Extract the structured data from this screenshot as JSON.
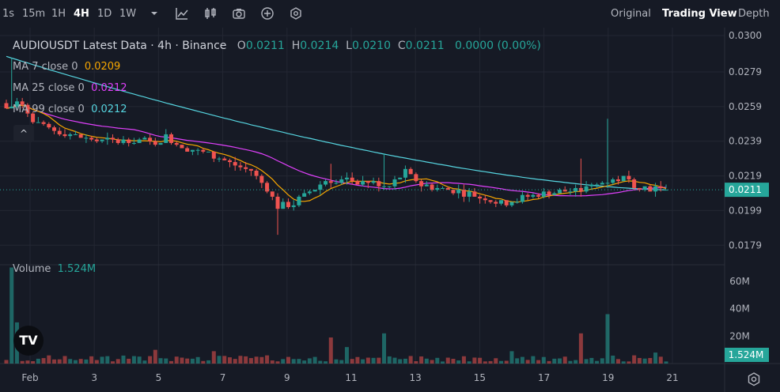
{
  "toolbar": {
    "intervals": [
      "1s",
      "15m",
      "1H",
      "4H",
      "1D",
      "1W"
    ],
    "active_interval": "4H",
    "views": [
      "Original",
      "Trading View",
      "Depth"
    ],
    "active_view": "Trading View",
    "icons": [
      "chevron-down-icon",
      "indicators-icon",
      "candle-type-icon",
      "camera-icon",
      "add-icon",
      "settings-icon"
    ]
  },
  "legend": {
    "title": "AUDIOUSDT Latest Data · 4h · Binance",
    "o_label": "O",
    "o_value": "0.0211",
    "h_label": "H",
    "h_value": "0.0214",
    "l_label": "L",
    "l_value": "0.0210",
    "c_label": "C",
    "c_value": "0.0211",
    "change": "0.0000 (0.00%)",
    "ma7_label": "MA 7 close 0",
    "ma7_value": "0.0209",
    "ma25_label": "MA 25 close 0",
    "ma25_value": "0.0212",
    "ma99_label": "MA 99 close 0",
    "ma99_value": "0.0212",
    "collapse_icon": "^",
    "volume_label": "Volume",
    "volume_value": "1.524M"
  },
  "colors": {
    "up": "#26a69a",
    "down": "#ef5350",
    "ma7": "#f7a600",
    "ma25": "#e040fb",
    "ma99": "#56d5e0",
    "background": "#161a25",
    "grid": "#232733"
  },
  "chart_data": {
    "type": "candlestick",
    "symbol": "AUDIOUSDT",
    "interval": "4h",
    "x_tick_labels": [
      "Feb",
      "3",
      "5",
      "7",
      "9",
      "11",
      "13",
      "15",
      "17",
      "19",
      "21"
    ],
    "price_ticks": [
      "0.0300",
      "0.0279",
      "0.0259",
      "0.0239",
      "0.0219",
      "0.0199",
      "0.0179"
    ],
    "price_range": [
      0.017,
      0.03
    ],
    "last_price": "0.0211",
    "volume_ticks": [
      "60M",
      "40M",
      "20M"
    ],
    "volume_range": [
      0,
      72
    ],
    "last_volume": "1.524M",
    "candles": [],
    "volume": [],
    "ma7": [],
    "ma25": [],
    "ma99": []
  }
}
